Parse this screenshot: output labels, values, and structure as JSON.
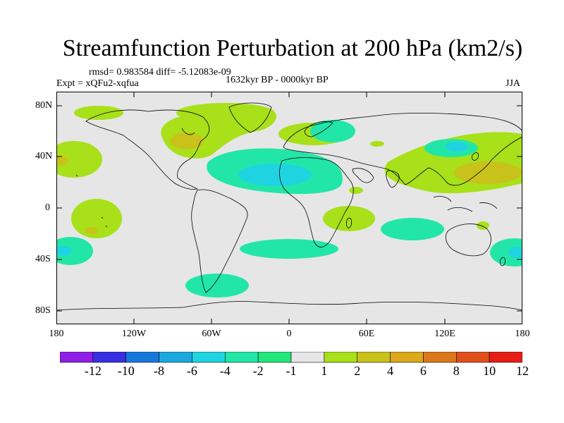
{
  "header": {
    "title": "Streamfunction Perturbation at 200 hPa (km2/s)",
    "stats": "rmsd= 0.983584 diff= -5.12083e-09",
    "experiment": "Expt = xQFu2-xqfua",
    "period": "1632kyr BP - 0000kyr BP",
    "season": "JJA"
  },
  "axes": {
    "lat_labels": [
      "80N",
      "40N",
      "0",
      "40S",
      "80S"
    ],
    "lon_labels": [
      "180",
      "120W",
      "60W",
      "0",
      "60E",
      "120E",
      "180"
    ]
  },
  "colorbar": {
    "labels": [
      "-12",
      "-10",
      "-8",
      "-6",
      "-4",
      "-2",
      "-1",
      "1",
      "2",
      "4",
      "6",
      "8",
      "10",
      "12"
    ],
    "colors": [
      "#8f1ee6",
      "#3a2fe0",
      "#1778dc",
      "#1aa8de",
      "#1fd4e0",
      "#22e6a8",
      "#22e67a",
      "#e6e6e6",
      "#a8e01a",
      "#c8c21a",
      "#dca81c",
      "#dc781c",
      "#e0501a",
      "#e61e16"
    ]
  },
  "map": {
    "background": "#e6e6e6",
    "coastline_color": "#000000"
  }
}
